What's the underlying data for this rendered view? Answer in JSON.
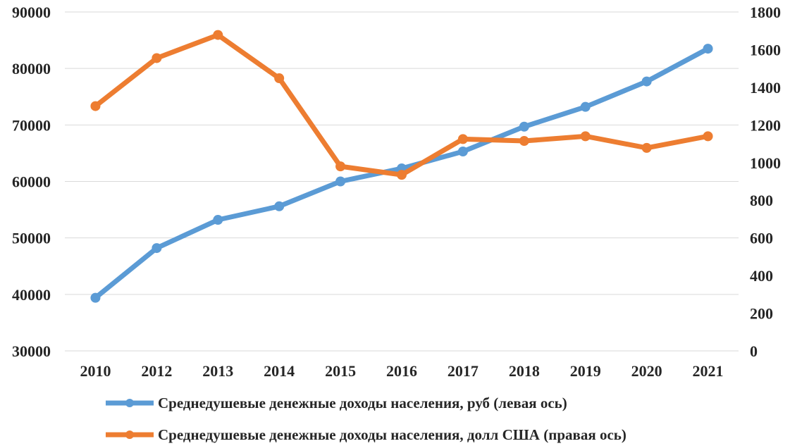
{
  "chart_data": {
    "type": "line",
    "title": "",
    "categories": [
      "2010",
      "2012",
      "2013",
      "2014",
      "2015",
      "2016",
      "2017",
      "2018",
      "2019",
      "2020",
      "2021"
    ],
    "y_left": {
      "ylim": [
        30000,
        90000
      ],
      "ticks": [
        30000,
        40000,
        50000,
        60000,
        70000,
        80000,
        90000
      ],
      "tick_labels": [
        "30000",
        "40000",
        "50000",
        "60000",
        "70000",
        "80000",
        "90000"
      ]
    },
    "y_right": {
      "ylim": [
        0,
        1800
      ],
      "ticks": [
        0,
        200,
        400,
        600,
        800,
        1000,
        1200,
        1400,
        1600,
        1800
      ],
      "tick_labels": [
        "0",
        "200",
        "400",
        "600",
        "800",
        "1000",
        "1200",
        "1400",
        "1600",
        "1800"
      ]
    },
    "grid": true,
    "legend_position": "bottom",
    "series": [
      {
        "name": "Среднедушевые денежные доходы населения, руб (левая ось)",
        "axis": "left",
        "color": "#5b9bd5",
        "values": [
          39400,
          48200,
          53200,
          55600,
          60000,
          62300,
          65300,
          69700,
          73200,
          77700,
          83500
        ]
      },
      {
        "name": "Среднедушевые денежные доходы населения, долл США (правая ось)",
        "axis": "right",
        "color": "#ed7d31",
        "values": [
          1300,
          1555,
          1678,
          1448,
          980,
          935,
          1125,
          1115,
          1140,
          1078,
          1140
        ]
      }
    ]
  }
}
